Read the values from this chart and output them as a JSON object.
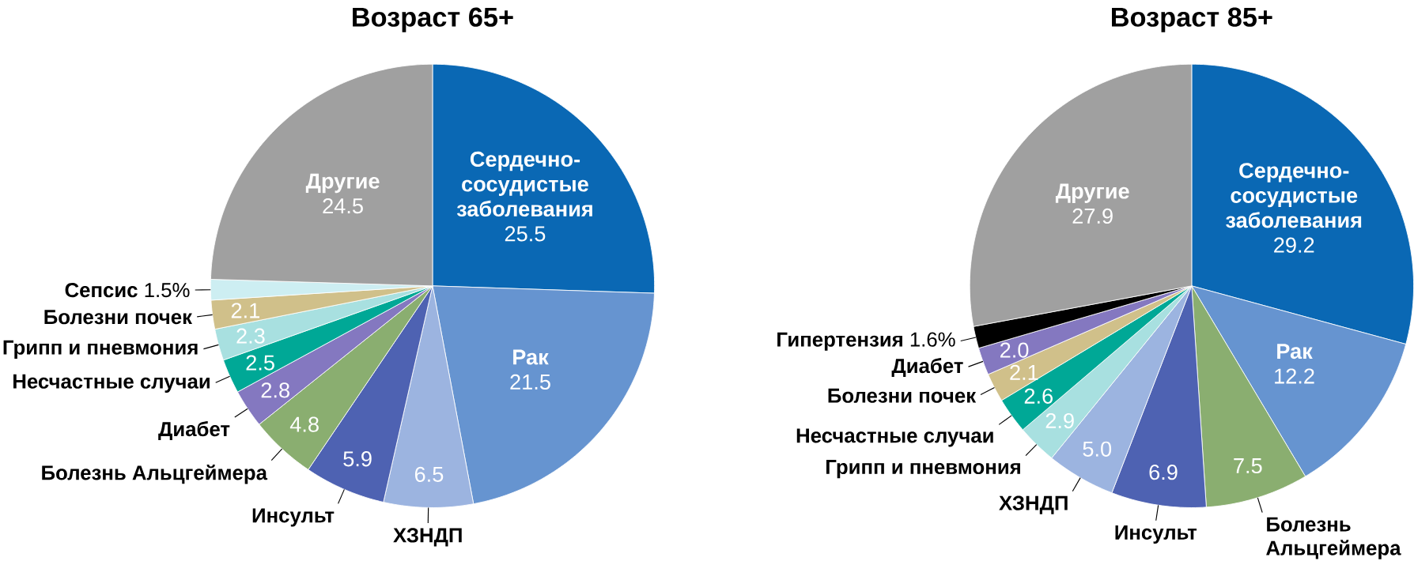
{
  "chart_data": [
    {
      "type": "pie",
      "title": "Возраст 65+",
      "categories": [
        "Сердечно-сосудистые заболевания",
        "Рак",
        "ХЗНДП",
        "Инсульт",
        "Болезнь Альцгеймера",
        "Диабет",
        "Несчастные случаи",
        "Грипп и пневмония",
        "Болезни почек",
        "Сепсис",
        "Другие"
      ],
      "values": [
        25.5,
        21.5,
        6.5,
        5.9,
        4.8,
        2.8,
        2.5,
        2.3,
        2.1,
        1.5,
        24.5
      ],
      "value_labels": [
        "25.5",
        "21.5",
        "6.5",
        "5.9",
        "4.8",
        "2.8",
        "2.5",
        "2.3",
        "2.1",
        "1.5%",
        "24.5"
      ],
      "colors": [
        "#0a68b4",
        "#6694d0",
        "#9cb4e0",
        "#4e62b2",
        "#8aae70",
        "#8478c0",
        "#00a896",
        "#a8e0e0",
        "#d0c08a",
        "#cdeef2",
        "#a0a0a0"
      ]
    },
    {
      "type": "pie",
      "title": "Возраст 85+",
      "categories": [
        "Сердечно-сосудистые заболевания",
        "Рак",
        "Болезнь Альцгеймера",
        "Инсульт",
        "ХЗНДП",
        "Грипп и пневмония",
        "Несчастные случаи",
        "Болезни почек",
        "Диабет",
        "Гипертензия",
        "Другие"
      ],
      "values": [
        29.2,
        12.2,
        7.5,
        6.9,
        5.0,
        2.9,
        2.6,
        2.1,
        2.0,
        1.6,
        27.9
      ],
      "value_labels": [
        "29.2",
        "12.2",
        "7.5",
        "6.9",
        "5.0",
        "2.9",
        "2.6",
        "2.1",
        "2.0",
        "1.6%",
        "27.9"
      ],
      "colors": [
        "#0a68b4",
        "#6694d0",
        "#8aae70",
        "#4e62b2",
        "#9cb4e0",
        "#a8e0e0",
        "#00a896",
        "#d0c08a",
        "#8478c0",
        "#000000",
        "#a0a0a0"
      ]
    }
  ]
}
